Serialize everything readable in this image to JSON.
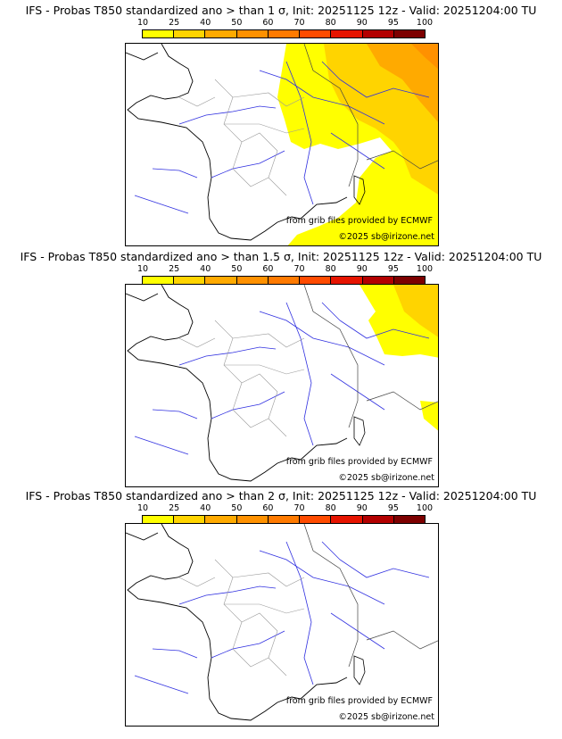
{
  "colorbar": {
    "ticks": [
      "10",
      "25",
      "40",
      "50",
      "60",
      "70",
      "80",
      "90",
      "95",
      "100"
    ],
    "colors": [
      "#ffff00",
      "#ffd400",
      "#ffaa00",
      "#ff9100",
      "#ff7a00",
      "#ff4b00",
      "#e61400",
      "#b30000",
      "#7d0000"
    ]
  },
  "panels": [
    {
      "title": "IFS - Probas T850  standardized ano > than 1 σ, Init: 20251125 12z - Valid: 20251204:00 TU",
      "credit_source": "from grib files provided by ECMWF",
      "credit_copyright": "©2025 sb@irizone.net"
    },
    {
      "title": "IFS - Probas T850  standardized ano > than 1.5 σ, Init: 20251125 12z - Valid: 20251204:00 TU",
      "credit_source": "from grib files provided by ECMWF",
      "credit_copyright": "©2025 sb@irizone.net"
    },
    {
      "title": "IFS - Probas T850  standardized ano > than 2 σ, Init: 20251125 12z - Valid: 20251204:00 TU",
      "credit_source": "from grib files provided by ECMWF",
      "credit_copyright": "©2025 sb@irizone.net"
    }
  ]
}
